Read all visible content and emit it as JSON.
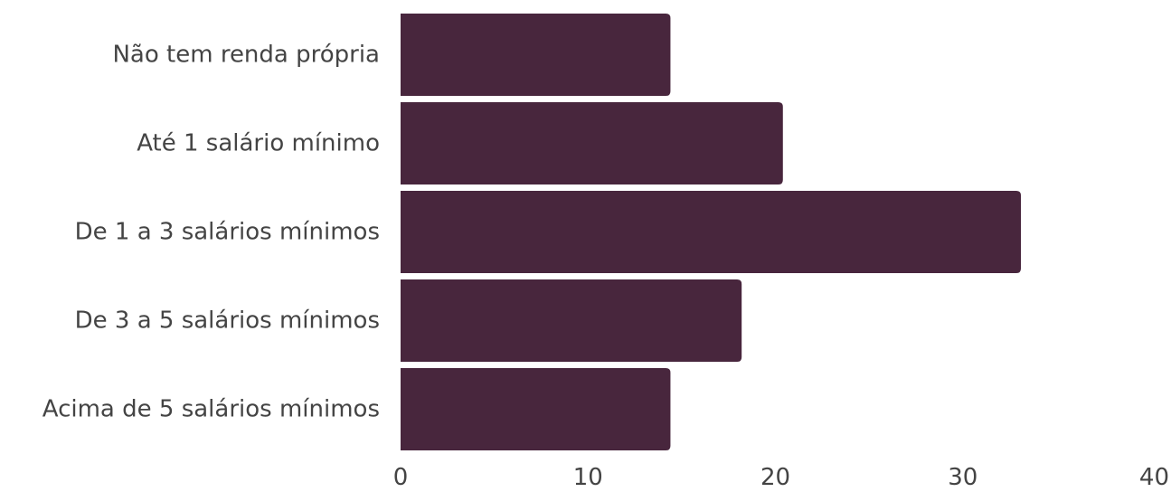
{
  "chart_data": {
    "type": "bar",
    "orientation": "horizontal",
    "title": "",
    "xlabel": "",
    "ylabel": "",
    "categories": [
      "Não tem renda própria",
      "Até 1 salário mínimo",
      "De 1 a 3 salários mínimos",
      "De 3 a 5 salários mínimos",
      "Acima de 5 salários mínimos"
    ],
    "values": [
      14.4,
      20.4,
      33.1,
      18.2,
      14.4
    ],
    "xlim": [
      0,
      40
    ],
    "xticks": [
      "0",
      "10",
      "20",
      "30",
      "40"
    ],
    "bar_color": "#48263d",
    "grid": false,
    "legend": "none"
  }
}
